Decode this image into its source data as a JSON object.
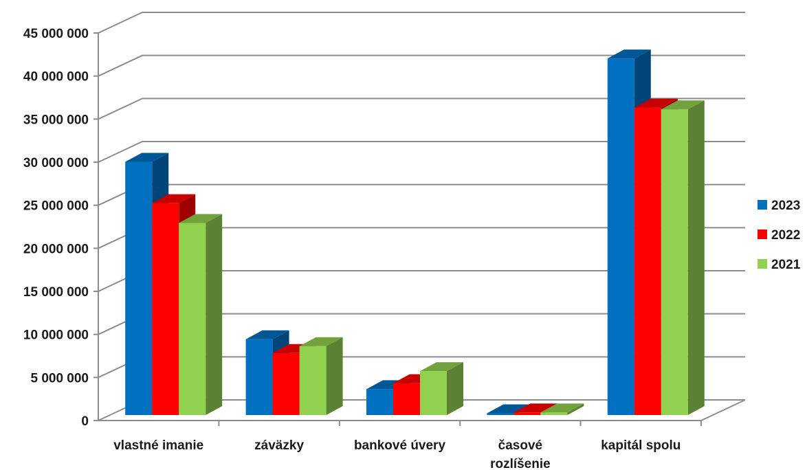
{
  "chart_data": {
    "type": "bar",
    "style": "3d-clustered-column",
    "categories": [
      [
        "vlastné imanie"
      ],
      [
        "záväzky"
      ],
      [
        "bankové úvery"
      ],
      [
        "časové",
        "rozlíšenie"
      ],
      [
        "kapitál spolu"
      ]
    ],
    "series": [
      {
        "name": "2023",
        "color": "#0070C0",
        "values": [
          29400000,
          8800000,
          3000000,
          200000,
          41400000
        ]
      },
      {
        "name": "2022",
        "color": "#FF0000",
        "values": [
          24600000,
          7200000,
          3700000,
          300000,
          35700000
        ]
      },
      {
        "name": "2021",
        "color": "#92D050",
        "values": [
          22300000,
          8000000,
          5100000,
          300000,
          35500000
        ]
      }
    ],
    "y_ticks": [
      "0",
      "5 000 000",
      "10 000 000",
      "15 000 000",
      "20 000 000",
      "25 000 000",
      "30 000 000",
      "35 000 000",
      "40 000 000",
      "45 000 000"
    ],
    "ylim": [
      0,
      45000000
    ],
    "grid": true,
    "legend_position": "right"
  }
}
